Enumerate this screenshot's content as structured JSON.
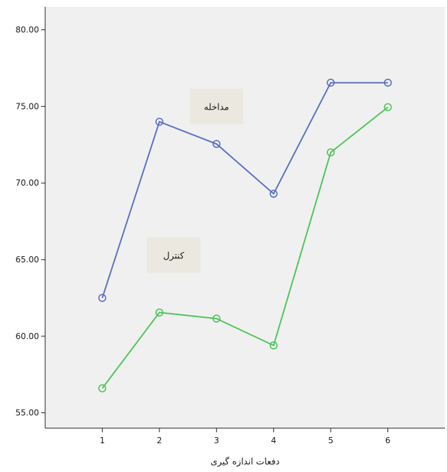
{
  "chart_data": {
    "type": "line",
    "xlabel": "دفعات اندازه گیری",
    "ylabel": "",
    "x": [
      1,
      2,
      3,
      4,
      5,
      6
    ],
    "x_tick_labels": [
      "1",
      "2",
      "3",
      "4",
      "5",
      "6"
    ],
    "y_tick_values": [
      55,
      60,
      65,
      70,
      75,
      80
    ],
    "y_tick_labels": [
      "55.00",
      "60.00",
      "65.00",
      "70.00",
      "75.00",
      "80.00"
    ],
    "ylim": [
      54.0,
      81.5
    ],
    "xlim": [
      0.0,
      7.0
    ],
    "grid": false,
    "legend": "none",
    "series": [
      {
        "name": "مداخله",
        "values": [
          62.5,
          74.0,
          72.55,
          69.3,
          76.55,
          76.55
        ],
        "color": "#5a6fbf",
        "label_anchor": {
          "x": 3.0,
          "y": 75.0
        }
      },
      {
        "name": "کنترل",
        "values": [
          56.6,
          61.55,
          61.15,
          59.4,
          72.0,
          74.95
        ],
        "color": "#4cc45a",
        "label_anchor": {
          "x": 2.25,
          "y": 65.3
        }
      }
    ],
    "plot_background": "#f0f0f0",
    "label_box_color": "#ebe9df"
  }
}
